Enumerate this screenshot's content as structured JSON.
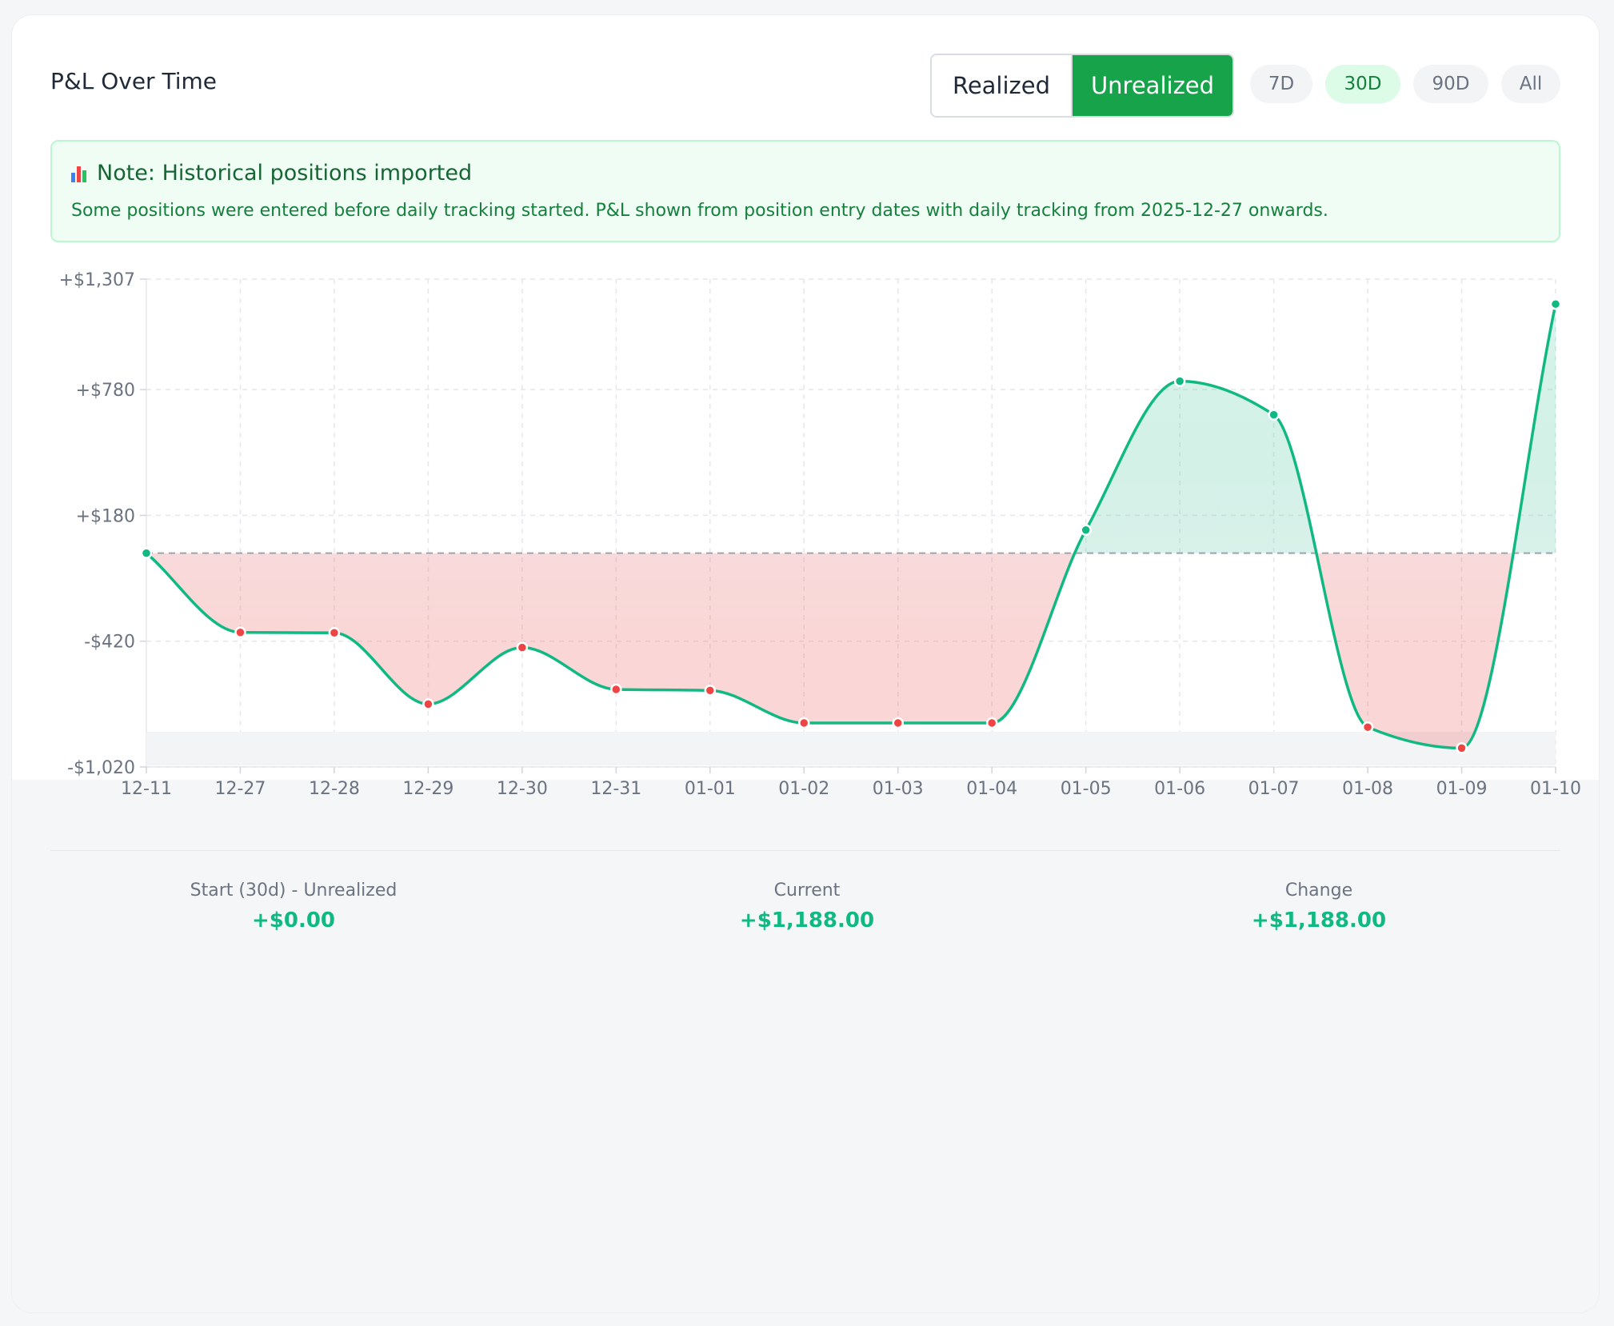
{
  "header": {
    "title": "P&L Over Time",
    "toggle": {
      "realized_label": "Realized",
      "unrealized_label": "Unrealized",
      "active": "unrealized"
    },
    "ranges": [
      {
        "label": "7D",
        "active": false
      },
      {
        "label": "30D",
        "active": true
      },
      {
        "label": "90D",
        "active": false
      },
      {
        "label": "All",
        "active": false
      }
    ]
  },
  "note": {
    "icon": "bar-chart-icon",
    "title": "Note: Historical positions imported",
    "text": "Some positions were entered before daily tracking started. P&L shown from position entry dates with daily tracking from 2025-12-27 onwards."
  },
  "colors": {
    "line": "#10b981",
    "positive": "#10b981",
    "negative": "#ef4444",
    "accent": "#16a34a"
  },
  "chart_data": {
    "type": "area",
    "title": "P&L Over Time",
    "x": [
      "12-11",
      "12-27",
      "12-28",
      "12-29",
      "12-30",
      "12-31",
      "01-01",
      "01-02",
      "01-03",
      "01-04",
      "01-05",
      "01-06",
      "01-07",
      "01-08",
      "01-09",
      "01-10"
    ],
    "series": [
      {
        "values": [
          0,
          -378,
          -380,
          -720,
          -450,
          -650,
          -655,
          -810,
          -810,
          -810,
          110,
          820,
          660,
          -830,
          -930,
          1188
        ]
      }
    ],
    "yticks": [
      1307,
      780,
      180,
      -420,
      -1020
    ],
    "ytick_labels": [
      "+$1,307",
      "+$780",
      "+$180",
      "-$420",
      "-$1,020"
    ],
    "ylim": [
      -1020,
      1307
    ],
    "baseline": 0,
    "grid": true,
    "xlabel": "",
    "ylabel": ""
  },
  "stats": [
    {
      "label": "Start (30d) - Unrealized",
      "value": "+$0.00"
    },
    {
      "label": "Current",
      "value": "+$1,188.00"
    },
    {
      "label": "Change",
      "value": "+$1,188.00"
    }
  ]
}
